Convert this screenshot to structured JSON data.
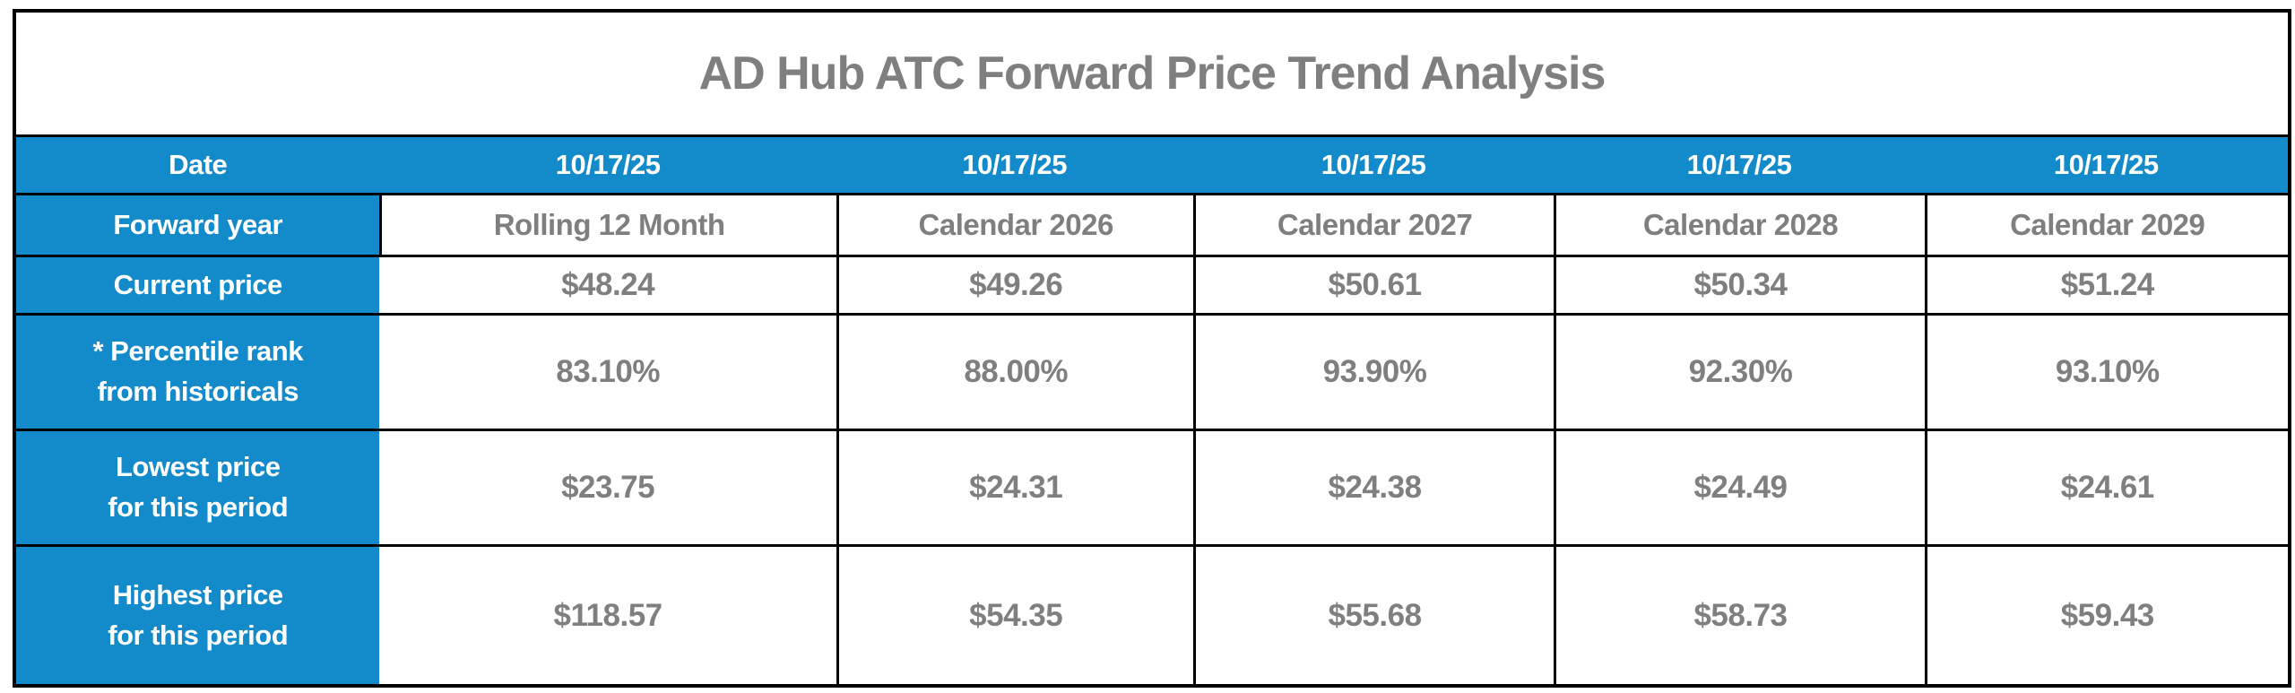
{
  "chart_data": {
    "type": "table",
    "title": "AD Hub ATC Forward Price Trend Analysis",
    "columns": [
      "Date",
      "10/17/25",
      "10/17/25",
      "10/17/25",
      "10/17/25",
      "10/17/25"
    ],
    "rows": [
      [
        "Forward year",
        "Rolling 12 Month",
        "Calendar 2026",
        "Calendar 2027",
        "Calendar 2028",
        "Calendar 2029"
      ],
      [
        "Current price",
        "$48.24",
        "$49.26",
        "$50.61",
        "$50.34",
        "$51.24"
      ],
      [
        "* Percentile rank from historicals",
        "83.10%",
        "88.00%",
        "93.90%",
        "92.30%",
        "93.10%"
      ],
      [
        "Lowest price for this period",
        "$23.75",
        "$24.31",
        "$24.38",
        "$24.49",
        "$24.61"
      ],
      [
        "Highest price for this period",
        "$118.57",
        "$54.35",
        "$55.68",
        "$58.73",
        "$59.43"
      ]
    ],
    "layout": {
      "header_fill": "#138ACA",
      "header_text_color": "#FFFFFF",
      "value_text_color": "#7F7F7F",
      "grid_border_color": "#000000"
    }
  },
  "display": {
    "labels": [
      {
        "line1": "Forward year",
        "line2": ""
      },
      {
        "line1": "Current price",
        "line2": ""
      },
      {
        "line1": "* Percentile rank",
        "line2": "from historicals"
      },
      {
        "line1": "Lowest price",
        "line2": "for this period"
      },
      {
        "line1": "Highest price",
        "line2": "for this period"
      }
    ]
  },
  "colors": {
    "accent_blue": "#138ACA",
    "text_gray": "#7F7F7F",
    "border_black": "#000000",
    "background": "#FFFFFF"
  }
}
